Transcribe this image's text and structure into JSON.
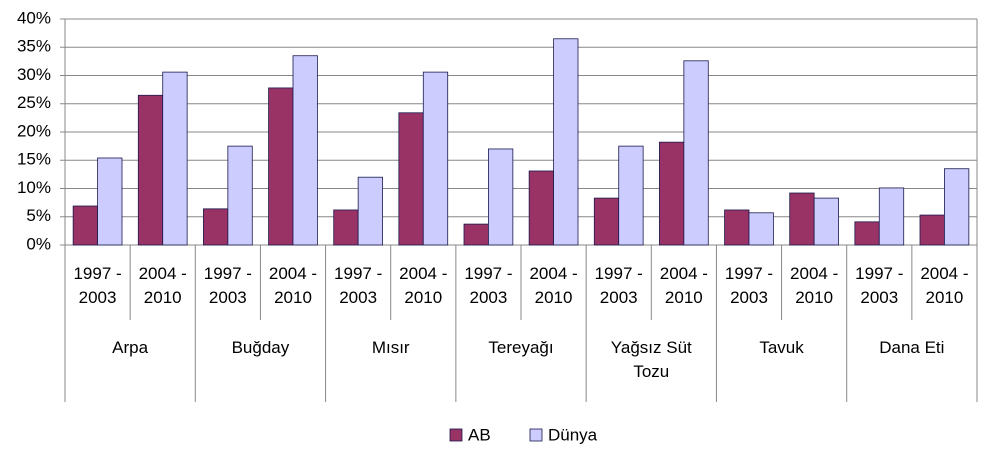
{
  "chart_data": {
    "type": "bar",
    "categories": [
      "1997 - 2003",
      "2004 - 2010",
      "1997 - 2003",
      "2004 - 2010",
      "1997 - 2003",
      "2004 - 2010",
      "1997 - 2003",
      "2004 - 2010",
      "1997 - 2003",
      "2004 - 2010",
      "1997 - 2003",
      "2004 - 2010",
      "1997 - 2003",
      "2004 - 2010"
    ],
    "category_groups": [
      "Arpa",
      "Buğday",
      "Mısır",
      "Tereyağı",
      "Yağsız Süt Tozu",
      "Tavuk",
      "Dana Eti"
    ],
    "series": [
      {
        "name": "AB",
        "color": "#993366",
        "values": [
          6.9,
          26.5,
          6.4,
          27.8,
          6.2,
          23.4,
          3.7,
          13.1,
          8.3,
          18.2,
          6.2,
          9.2,
          4.1,
          5.3
        ]
      },
      {
        "name": "Dünya",
        "color": "#ccccff",
        "values": [
          15.4,
          30.6,
          17.5,
          33.5,
          12.0,
          30.6,
          17.0,
          36.5,
          17.5,
          32.6,
          5.7,
          8.3,
          10.1,
          13.5
        ]
      }
    ],
    "ylim": [
      0,
      40
    ],
    "yticks": [
      {
        "value": 0,
        "label": "0%"
      },
      {
        "value": 5,
        "label": "5%"
      },
      {
        "value": 10,
        "label": "10%"
      },
      {
        "value": 15,
        "label": "15%"
      },
      {
        "value": 20,
        "label": "20%"
      },
      {
        "value": 25,
        "label": "25%"
      },
      {
        "value": 30,
        "label": "30%"
      },
      {
        "value": 35,
        "label": "35%"
      },
      {
        "value": 40,
        "label": "40%"
      }
    ],
    "grid": true,
    "legend": "bottom"
  }
}
